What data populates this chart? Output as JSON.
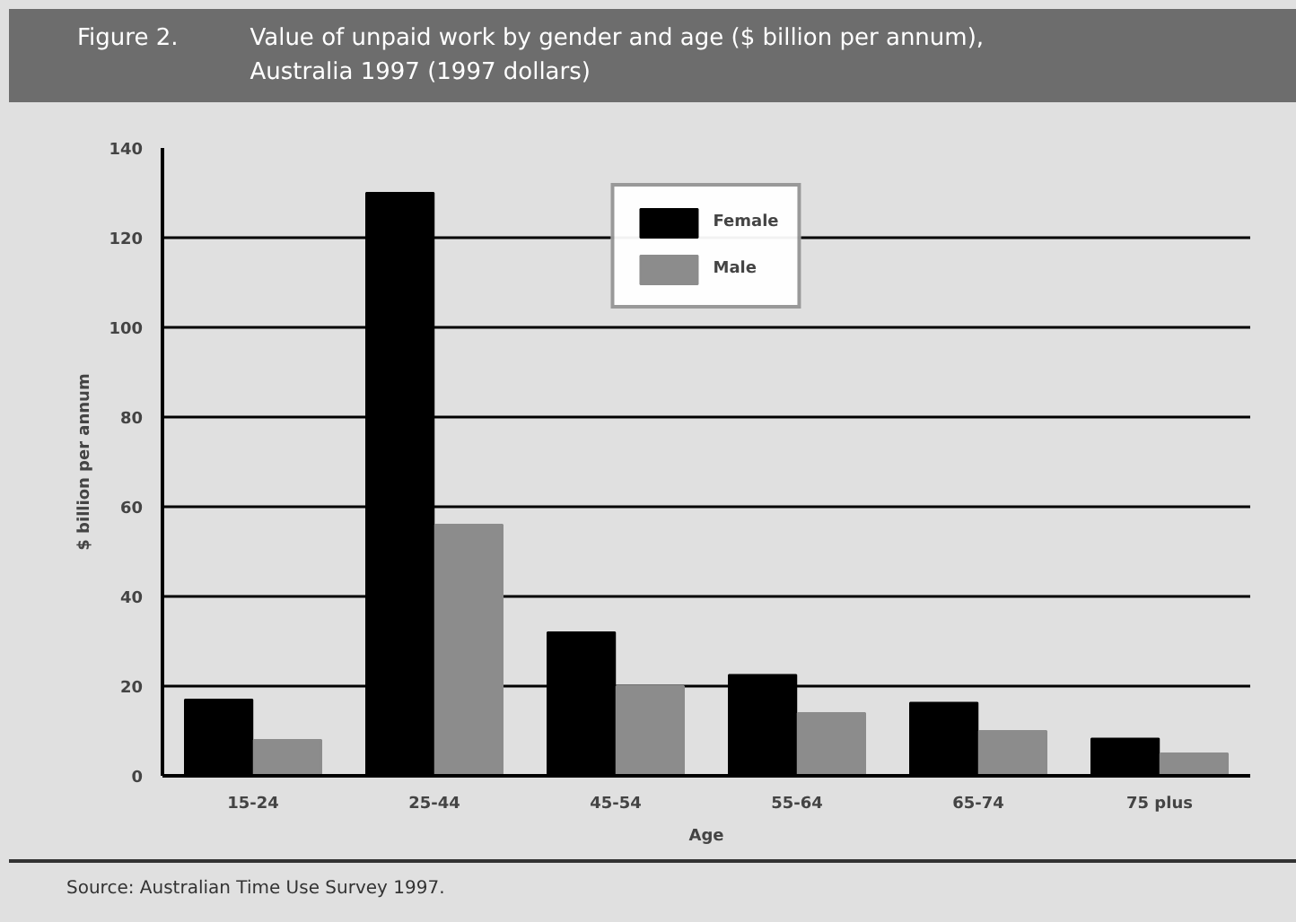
{
  "chart_data": {
    "type": "bar",
    "title": "Figure 2.",
    "subtitle": "Value of unpaid work by gender and age ($ billion per annum),\nAustralia 1997 (1997 dollars)",
    "xlabel": "Age",
    "ylabel": "$ billion per annum",
    "categories": [
      "15-24",
      "25-44",
      "45-54",
      "55-64",
      "65-74",
      "75 plus"
    ],
    "series": [
      {
        "name": "Female",
        "color": "#000000",
        "values": [
          17,
          130,
          32,
          22.5,
          16.3,
          8.3
        ]
      },
      {
        "name": "Male",
        "color": "#8c8c8c",
        "values": [
          8,
          56,
          20,
          14,
          10,
          5
        ]
      }
    ],
    "ylim": [
      0,
      140
    ],
    "yticks": [
      0,
      20,
      40,
      60,
      80,
      100,
      120,
      140
    ],
    "grid": "y",
    "legend": "top",
    "annotations": [
      "Source:  Australian Time Use Survey 1997."
    ]
  }
}
